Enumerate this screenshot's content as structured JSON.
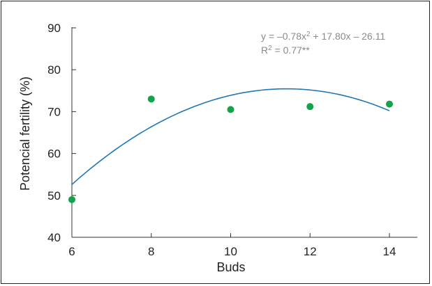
{
  "chart_data": {
    "type": "scatter",
    "xlabel": "Buds",
    "ylabel": "Potencial fertility (%)",
    "xlim": [
      6,
      14
    ],
    "ylim": [
      40,
      90
    ],
    "x_ticks": [
      6,
      8,
      10,
      12,
      14
    ],
    "y_ticks": [
      40,
      50,
      60,
      70,
      80,
      90
    ],
    "grid": false,
    "series": [
      {
        "points": [
          {
            "x": 6,
            "y": 49
          },
          {
            "x": 8,
            "y": 73
          },
          {
            "x": 10,
            "y": 70.5
          },
          {
            "x": 12,
            "y": 71.2
          },
          {
            "x": 14,
            "y": 71.8
          }
        ],
        "color": "#13a34a"
      }
    ],
    "trendline": {
      "type": "polynomial",
      "coefficients": {
        "a": -0.78,
        "b": 17.8,
        "c": -26.11
      },
      "color": "#1f77b4"
    },
    "annotation": {
      "equation": {
        "prefix": "y = –0.78x",
        "sup": "2",
        "suffix": " + 17.80x – 26.11"
      },
      "r2": {
        "prefix": "R",
        "sup": "2",
        "suffix": " = 0.77**"
      }
    }
  }
}
